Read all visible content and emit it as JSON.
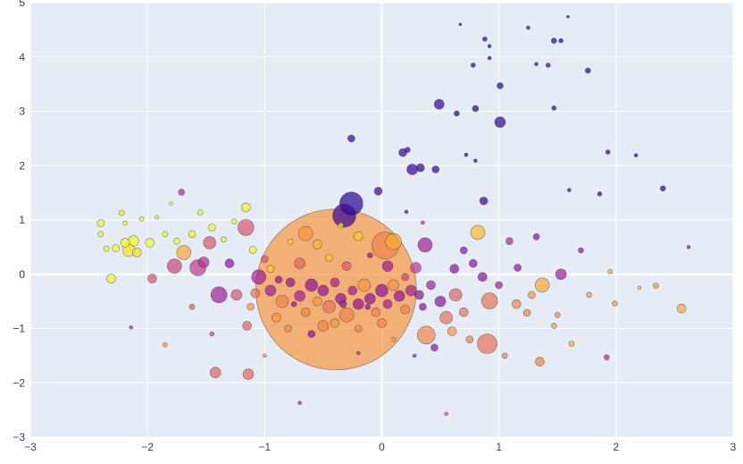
{
  "chart_data": {
    "type": "scatter",
    "title": "",
    "xlabel": "",
    "ylabel": "",
    "xlim": [
      -3,
      3
    ],
    "ylim": [
      -3,
      5
    ],
    "xticks": [
      -3,
      -2,
      -1,
      0,
      1,
      2,
      3
    ],
    "yticks": [
      -3,
      -2,
      -1,
      0,
      1,
      2,
      3,
      4,
      5
    ],
    "grid": true,
    "colorscale": "plasma",
    "colorscale_stops": [
      "#0d0887",
      "#46039f",
      "#7201a8",
      "#9c179e",
      "#bd3786",
      "#d8576b",
      "#ed7953",
      "#fb9f3a",
      "#fdca26",
      "#f0f921"
    ],
    "marker_opacity": 0.7,
    "point_fields": [
      "x",
      "y",
      "size",
      "color_value"
    ],
    "points": [
      [
        -0.39,
        -0.28,
        180,
        0.75
      ],
      [
        1.76,
        3.75,
        6,
        0.05
      ],
      [
        1.01,
        3.47,
        7,
        0.05
      ],
      [
        1.47,
        4.3,
        6,
        0.05
      ],
      [
        0.88,
        4.33,
        5,
        0.05
      ],
      [
        0.78,
        3.85,
        5,
        0.05
      ],
      [
        0.67,
        4.6,
        3,
        0.05
      ],
      [
        1.25,
        4.54,
        4,
        0.05
      ],
      [
        1.42,
        3.85,
        5,
        0.05
      ],
      [
        1.32,
        3.87,
        4,
        0.05
      ],
      [
        1.59,
        4.74,
        3,
        0.05
      ],
      [
        1.53,
        4.3,
        5,
        0.05
      ],
      [
        0.92,
        3.98,
        4,
        0.05
      ],
      [
        1.01,
        2.8,
        12,
        0.07
      ],
      [
        0.49,
        3.13,
        11,
        0.08
      ],
      [
        0.64,
        2.96,
        6,
        0.05
      ],
      [
        0.8,
        3.05,
        7,
        0.05
      ],
      [
        1.47,
        3.06,
        5,
        0.05
      ],
      [
        0.92,
        4.2,
        4,
        0.05
      ],
      [
        -0.26,
        2.5,
        8,
        0.07
      ],
      [
        0.18,
        2.24,
        9,
        0.08
      ],
      [
        0.22,
        2.29,
        6,
        0.08
      ],
      [
        0.26,
        1.93,
        12,
        0.08
      ],
      [
        0.33,
        1.96,
        9,
        0.07
      ],
      [
        0.46,
        1.93,
        8,
        0.07
      ],
      [
        0.72,
        2.2,
        4,
        0.05
      ],
      [
        0.8,
        2.09,
        4,
        0.05
      ],
      [
        1.93,
        2.25,
        5,
        0.05
      ],
      [
        2.17,
        2.19,
        4,
        0.05
      ],
      [
        2.4,
        1.58,
        6,
        0.05
      ],
      [
        -0.03,
        1.53,
        9,
        0.1
      ],
      [
        -0.26,
        1.3,
        26,
        0.05
      ],
      [
        -0.32,
        1.08,
        26,
        0.08
      ],
      [
        0.87,
        1.35,
        9,
        0.08
      ],
      [
        1.86,
        1.48,
        5,
        0.1
      ],
      [
        1.6,
        1.55,
        4,
        0.1
      ],
      [
        0.21,
        1.15,
        4,
        0.2
      ],
      [
        -2.19,
        0.94,
        5,
        1.0
      ],
      [
        -2.4,
        0.94,
        8,
        1.0
      ],
      [
        -2.4,
        0.74,
        6,
        1.0
      ],
      [
        -2.12,
        0.61,
        12,
        1.0
      ],
      [
        -2.16,
        0.44,
        14,
        0.95
      ],
      [
        -2.27,
        0.48,
        8,
        1.0
      ],
      [
        -2.19,
        0.58,
        10,
        1.0
      ],
      [
        -2.09,
        0.4,
        10,
        0.95
      ],
      [
        -1.98,
        0.58,
        10,
        1.0
      ],
      [
        -2.31,
        -0.08,
        10,
        1.0
      ],
      [
        -1.85,
        0.74,
        6,
        1.0
      ],
      [
        -1.75,
        0.61,
        7,
        1.0
      ],
      [
        -1.69,
        0.4,
        16,
        0.8
      ],
      [
        -1.62,
        0.74,
        8,
        1.0
      ],
      [
        -1.55,
        1.14,
        6,
        1.0
      ],
      [
        -1.45,
        0.86,
        8,
        1.0
      ],
      [
        -1.35,
        0.64,
        6,
        1.0
      ],
      [
        -1.26,
        0.97,
        6,
        1.0
      ],
      [
        -1.16,
        1.23,
        10,
        1.0
      ],
      [
        -2.22,
        1.13,
        6,
        1.0
      ],
      [
        -2.05,
        1.02,
        5,
        1.0
      ],
      [
        -1.92,
        1.05,
        4,
        1.0
      ],
      [
        -1.8,
        1.3,
        4,
        1.0
      ],
      [
        -2.35,
        0.47,
        6,
        1.0
      ],
      [
        -1.71,
        1.51,
        7,
        0.4
      ],
      [
        -1.57,
        0.12,
        18,
        0.45
      ],
      [
        -1.39,
        -0.38,
        18,
        0.35
      ],
      [
        -1.47,
        0.58,
        14,
        0.55
      ],
      [
        -1.16,
        0.86,
        18,
        0.55
      ],
      [
        -1.42,
        -1.81,
        12,
        0.6
      ],
      [
        -1.14,
        -1.84,
        12,
        0.6
      ],
      [
        -1.15,
        -0.95,
        10,
        0.6
      ],
      [
        -1.96,
        -0.08,
        10,
        0.55
      ],
      [
        -1.77,
        0.15,
        16,
        0.5
      ],
      [
        -1.24,
        -0.38,
        12,
        0.55
      ],
      [
        -1.05,
        -0.05,
        16,
        0.35
      ],
      [
        -1.62,
        -0.6,
        6,
        0.6
      ],
      [
        -1.85,
        -1.3,
        5,
        0.75
      ],
      [
        -1.45,
        -1.1,
        5,
        0.5
      ],
      [
        -2.14,
        -0.98,
        4,
        0.4
      ],
      [
        -1.3,
        0.2,
        10,
        0.3
      ],
      [
        -1.0,
        0.28,
        8,
        0.55
      ],
      [
        -1.52,
        0.22,
        12,
        0.4
      ],
      [
        0.82,
        0.77,
        16,
        0.85
      ],
      [
        0.37,
        0.54,
        16,
        0.35
      ],
      [
        1.53,
        0.0,
        12,
        0.35
      ],
      [
        1.37,
        -0.2,
        16,
        0.8
      ],
      [
        0.92,
        -0.49,
        18,
        0.65
      ],
      [
        0.9,
        -1.28,
        22,
        0.65
      ],
      [
        1.35,
        -1.61,
        10,
        0.7
      ],
      [
        2.56,
        -0.63,
        10,
        0.8
      ],
      [
        0.38,
        -1.12,
        20,
        0.7
      ],
      [
        0.55,
        -0.8,
        14,
        0.65
      ],
      [
        0.63,
        -0.38,
        14,
        0.6
      ],
      [
        0.29,
        0.12,
        12,
        0.45
      ],
      [
        0.03,
        0.53,
        30,
        0.7
      ],
      [
        0.32,
        -0.38,
        10,
        0.3
      ],
      [
        1.16,
        0.12,
        8,
        0.3
      ],
      [
        1.28,
        -0.38,
        8,
        0.75
      ],
      [
        1.77,
        -0.38,
        6,
        0.75
      ],
      [
        1.99,
        -0.54,
        6,
        0.75
      ],
      [
        2.34,
        -0.21,
        6,
        0.75
      ],
      [
        1.92,
        -1.53,
        6,
        0.4
      ],
      [
        1.09,
        0.61,
        8,
        0.4
      ],
      [
        1.32,
        0.69,
        7,
        0.3
      ],
      [
        1.7,
        0.44,
        6,
        0.3
      ],
      [
        0.7,
        0.44,
        8,
        0.3
      ],
      [
        0.86,
        -0.05,
        10,
        0.3
      ],
      [
        1.24,
        -0.71,
        8,
        0.7
      ],
      [
        1.47,
        -0.95,
        6,
        0.75
      ],
      [
        0.55,
        -2.57,
        4,
        0.55
      ],
      [
        -0.7,
        -2.37,
        4,
        0.4
      ],
      [
        1.62,
        -1.28,
        6,
        0.8
      ],
      [
        2.62,
        0.5,
        4,
        0.3
      ],
      [
        2.2,
        -0.25,
        4,
        0.8
      ],
      [
        1.95,
        0.05,
        5,
        0.8
      ],
      [
        1.05,
        -1.5,
        6,
        0.7
      ],
      [
        0.75,
        -1.2,
        8,
        0.7
      ],
      [
        0.45,
        -1.35,
        8,
        0.3
      ],
      [
        0.62,
        0.1,
        10,
        0.3
      ],
      [
        0.78,
        0.2,
        9,
        0.3
      ],
      [
        1.0,
        -0.2,
        8,
        0.35
      ],
      [
        1.15,
        -0.55,
        10,
        0.7
      ],
      [
        0.5,
        -0.5,
        12,
        0.3
      ],
      [
        -0.95,
        -0.3,
        12,
        0.35
      ],
      [
        -0.85,
        -0.5,
        14,
        0.7
      ],
      [
        -0.78,
        -0.15,
        10,
        0.3
      ],
      [
        -0.7,
        -0.4,
        12,
        0.35
      ],
      [
        -0.65,
        -0.7,
        10,
        0.7
      ],
      [
        -0.6,
        -0.2,
        14,
        0.3
      ],
      [
        -0.55,
        -0.5,
        10,
        0.75
      ],
      [
        -0.5,
        -0.3,
        12,
        0.3
      ],
      [
        -0.45,
        -0.6,
        14,
        0.65
      ],
      [
        -0.4,
        -0.15,
        10,
        0.35
      ],
      [
        -0.35,
        -0.45,
        12,
        0.3
      ],
      [
        -0.3,
        -0.75,
        16,
        0.7
      ],
      [
        -0.25,
        -0.3,
        10,
        0.35
      ],
      [
        -0.2,
        -0.55,
        12,
        0.3
      ],
      [
        -0.15,
        -0.2,
        14,
        0.75
      ],
      [
        -0.1,
        -0.45,
        12,
        0.3
      ],
      [
        -0.05,
        -0.7,
        10,
        0.7
      ],
      [
        0.0,
        -0.3,
        14,
        0.3
      ],
      [
        0.05,
        -0.55,
        10,
        0.35
      ],
      [
        0.1,
        -0.2,
        12,
        0.75
      ],
      [
        0.15,
        -0.4,
        12,
        0.3
      ],
      [
        0.2,
        -0.65,
        10,
        0.7
      ],
      [
        0.25,
        -0.3,
        12,
        0.35
      ],
      [
        -0.9,
        -0.8,
        10,
        0.75
      ],
      [
        -0.8,
        -1.0,
        8,
        0.7
      ],
      [
        -0.6,
        -1.1,
        8,
        0.3
      ],
      [
        -0.5,
        -0.95,
        12,
        0.7
      ],
      [
        -0.4,
        -0.9,
        10,
        0.75
      ],
      [
        -0.2,
        -1.0,
        8,
        0.7
      ],
      [
        0.0,
        -0.9,
        10,
        0.7
      ],
      [
        -0.7,
        0.2,
        12,
        0.6
      ],
      [
        -0.55,
        0.55,
        10,
        0.85
      ],
      [
        -0.45,
        0.3,
        8,
        0.9
      ],
      [
        -0.2,
        0.7,
        10,
        0.9
      ],
      [
        0.1,
        0.6,
        18,
        0.8
      ],
      [
        -0.65,
        0.75,
        16,
        0.75
      ],
      [
        -0.3,
        0.15,
        10,
        0.55
      ],
      [
        0.05,
        0.15,
        12,
        0.35
      ],
      [
        -0.95,
        0.1,
        8,
        0.9
      ],
      [
        -1.1,
        0.45,
        8,
        1.0
      ],
      [
        -0.78,
        0.6,
        6,
        0.95
      ],
      [
        -0.35,
        0.9,
        6,
        1.0
      ],
      [
        0.2,
        -0.05,
        8,
        0.5
      ],
      [
        -0.1,
        0.35,
        6,
        0.3
      ],
      [
        -0.75,
        -0.55,
        6,
        0.3
      ],
      [
        -0.33,
        -0.55,
        8,
        0.3
      ],
      [
        -0.12,
        -0.6,
        6,
        0.3
      ],
      [
        0.35,
        -0.6,
        8,
        0.3
      ],
      [
        0.42,
        -0.2,
        10,
        0.35
      ],
      [
        -0.88,
        -0.1,
        8,
        0.3
      ],
      [
        -1.08,
        -0.35,
        10,
        0.65
      ],
      [
        -1.12,
        -0.6,
        8,
        0.75
      ],
      [
        0.6,
        -1.05,
        10,
        0.75
      ],
      [
        0.7,
        -0.7,
        10,
        0.65
      ],
      [
        1.5,
        -0.75,
        6,
        0.7
      ],
      [
        0.28,
        -1.5,
        4,
        0.35
      ],
      [
        -0.2,
        -1.45,
        4,
        0.4
      ],
      [
        0.1,
        -1.2,
        5,
        0.8
      ],
      [
        -1.0,
        -1.5,
        4,
        0.7
      ],
      [
        0.35,
        0.95,
        4,
        0.4
      ]
    ]
  }
}
